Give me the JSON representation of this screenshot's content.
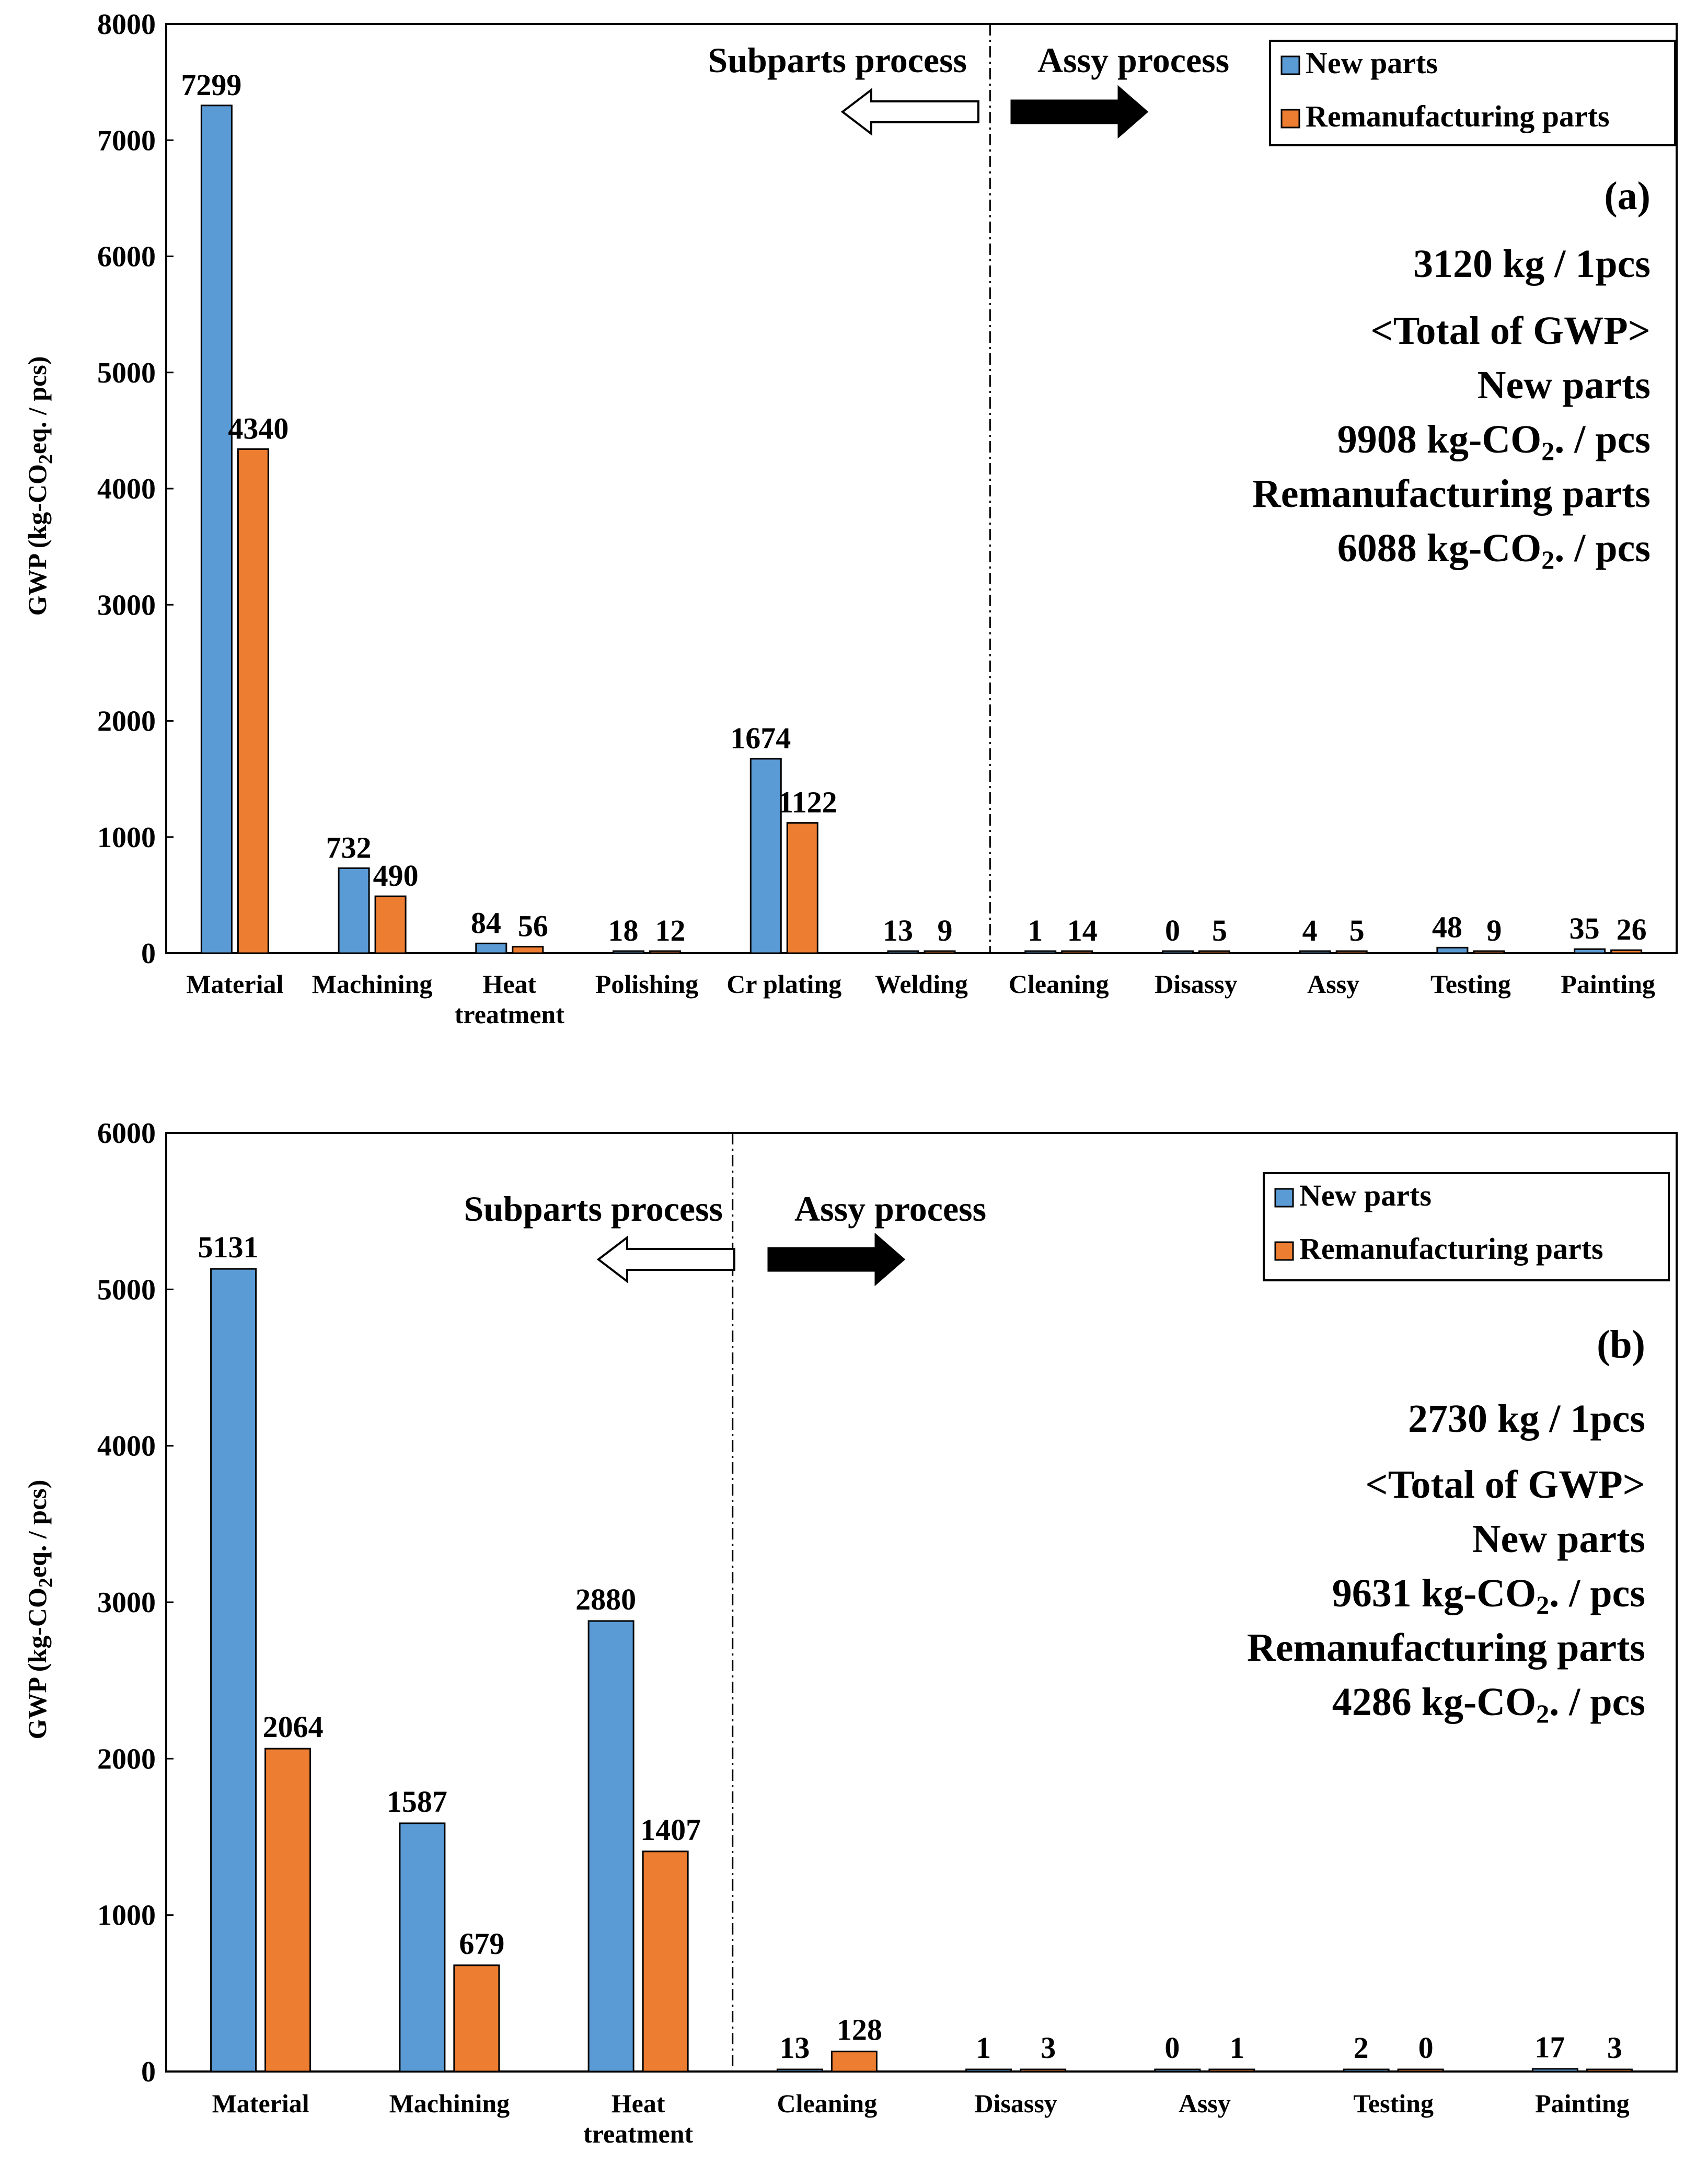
{
  "colors": {
    "new": "#5B9BD5",
    "reman": "#ED7D31"
  },
  "chart_data": [
    {
      "type": "bar",
      "panel": "(a)",
      "categories": [
        "Material",
        "Machining",
        "Heat\ntreatment",
        "Polishing",
        "Cr plating",
        "Welding",
        "Cleaning",
        "Disassy",
        "Assy",
        "Testing",
        "Painting"
      ],
      "series": [
        {
          "name": "New parts",
          "values": [
            7299,
            732,
            84,
            18,
            1674,
            13,
            1,
            0,
            4,
            48,
            35
          ]
        },
        {
          "name": "Remanufacturing parts",
          "values": [
            4340,
            490,
            56,
            12,
            1122,
            9,
            14,
            5,
            5,
            9,
            26
          ]
        }
      ],
      "ylabel": "GWP (kg-CO2eq. / pcs)",
      "ylim": [
        0,
        8000
      ],
      "yticks": [
        0,
        1000,
        2000,
        3000,
        4000,
        5000,
        6000,
        7000,
        8000
      ],
      "legend": "top-right",
      "divider_after_category": 5,
      "subparts_label": "Subparts process",
      "assy_label": "Assy process",
      "panel_label": "(a)",
      "weight": "3120 kg / 1pcs",
      "total_title": "<Total of GWP>",
      "new_label": "New parts",
      "new_total": "9908 kg-CO₂. / pcs",
      "reman_label": "Remanufacturing parts",
      "reman_total": "6088 kg-CO₂. / pcs"
    },
    {
      "type": "bar",
      "panel": "(b)",
      "categories": [
        "Material",
        "Machining",
        "Heat\ntreatment",
        "Cleaning",
        "Disassy",
        "Assy",
        "Testing",
        "Painting"
      ],
      "series": [
        {
          "name": "New parts",
          "values": [
            5131,
            1587,
            2880,
            13,
            1,
            0,
            2,
            17
          ]
        },
        {
          "name": "Remanufacturing parts",
          "values": [
            2064,
            679,
            1407,
            128,
            3,
            1,
            0,
            3
          ]
        }
      ],
      "ylabel": "GWP (kg-CO2eq. / pcs)",
      "ylim": [
        0,
        6000
      ],
      "yticks": [
        0,
        1000,
        2000,
        3000,
        4000,
        5000,
        6000
      ],
      "legend": "top-right",
      "divider_after_category": 2,
      "subparts_label": "Subparts process",
      "assy_label": "Assy process",
      "panel_label": "(b)",
      "weight": "2730 kg / 1pcs",
      "total_title": "<Total of GWP>",
      "new_label": "New parts",
      "new_total": "9631 kg-CO₂. / pcs",
      "reman_label": "Remanufacturing parts",
      "reman_total": "4286 kg-CO₂. / pcs"
    }
  ]
}
